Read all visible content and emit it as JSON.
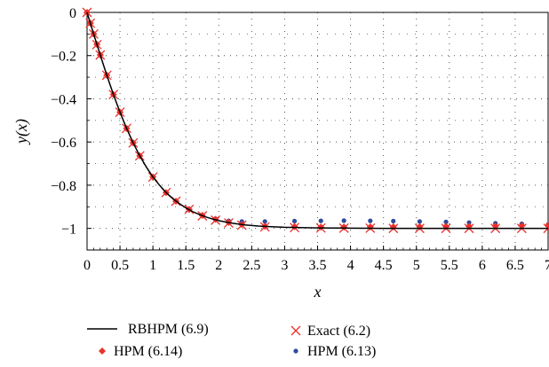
{
  "chart_data": {
    "type": "line",
    "title": "",
    "xlabel": "x",
    "ylabel": "y(x)",
    "xlim": [
      0,
      7
    ],
    "ylim": [
      -1.1,
      0
    ],
    "grid": true,
    "legend_placement": "bottom",
    "xticks": [
      "0",
      "0.5",
      "1",
      "1.5",
      "2",
      "2.5",
      "3",
      "3.5",
      "4",
      "4.5",
      "5",
      "5.5",
      "6",
      "6.5",
      "7"
    ],
    "xtick_values": [
      0,
      0.5,
      1,
      1.5,
      2,
      2.5,
      3,
      3.5,
      4,
      4.5,
      5,
      5.5,
      6,
      6.5,
      7
    ],
    "yticks": [
      "0",
      "−0.2",
      "−0.4",
      "−0.6",
      "−0.8",
      "−1"
    ],
    "ytick_values": [
      0,
      -0.2,
      -0.4,
      -0.6,
      -0.8,
      -1
    ],
    "series": [
      {
        "name": "RBHPM (6.9)",
        "kind": "line",
        "color": "#000000",
        "x": [
          0,
          0.1,
          0.2,
          0.3,
          0.4,
          0.5,
          0.6,
          0.7,
          0.8,
          0.9,
          1.0,
          1.1,
          1.2,
          1.3,
          1.4,
          1.5,
          1.6,
          1.7,
          1.8,
          1.9,
          2.0,
          2.2,
          2.4,
          2.6,
          2.8,
          3.0,
          3.5,
          4.0,
          4.5,
          5.0,
          5.5,
          6.0,
          6.5,
          7.0
        ],
        "y": [
          0,
          -0.1,
          -0.197,
          -0.291,
          -0.38,
          -0.462,
          -0.537,
          -0.604,
          -0.664,
          -0.716,
          -0.762,
          -0.8,
          -0.834,
          -0.862,
          -0.885,
          -0.905,
          -0.922,
          -0.935,
          -0.947,
          -0.956,
          -0.964,
          -0.976,
          -0.984,
          -0.989,
          -0.992,
          -0.995,
          -0.998,
          -0.999,
          -1.0,
          -1.0,
          -1.0,
          -1.0,
          -1.0,
          -1.0
        ]
      },
      {
        "name": "HPM (6.14)",
        "kind": "diamond",
        "color": "#e8322d",
        "x": [
          0,
          0.05,
          0.1,
          0.15,
          0.2,
          0.3,
          0.4,
          0.5,
          0.6,
          0.7,
          0.8,
          1.0,
          1.2,
          1.35,
          1.55,
          1.75,
          1.95,
          2.15,
          2.35,
          2.7,
          3.15,
          3.55,
          3.9,
          4.3,
          4.65,
          5.05,
          5.45,
          5.8,
          6.2,
          6.6,
          7.0
        ],
        "y": [
          0,
          -0.05,
          -0.1,
          -0.148,
          -0.197,
          -0.291,
          -0.38,
          -0.462,
          -0.537,
          -0.604,
          -0.664,
          -0.762,
          -0.834,
          -0.874,
          -0.912,
          -0.94,
          -0.958,
          -0.972,
          -0.982,
          -0.99,
          -0.992,
          -0.994,
          -0.994,
          -0.993,
          -0.993,
          -0.992,
          -0.991,
          -0.99,
          -0.989,
          -0.988,
          -0.987
        ]
      },
      {
        "name": "Exact (6.2)",
        "kind": "cross",
        "color": "#e8322d",
        "x": [
          0,
          0.05,
          0.1,
          0.15,
          0.2,
          0.3,
          0.4,
          0.5,
          0.6,
          0.7,
          0.8,
          1.0,
          1.2,
          1.35,
          1.55,
          1.75,
          1.95,
          2.15,
          2.35,
          2.7,
          3.15,
          3.55,
          3.9,
          4.3,
          4.65,
          5.05,
          5.45,
          5.8,
          6.2,
          6.6,
          7.0
        ],
        "y": [
          0,
          -0.05,
          -0.1,
          -0.149,
          -0.197,
          -0.291,
          -0.38,
          -0.462,
          -0.537,
          -0.604,
          -0.664,
          -0.762,
          -0.834,
          -0.874,
          -0.912,
          -0.942,
          -0.962,
          -0.975,
          -0.985,
          -0.993,
          -0.996,
          -0.998,
          -0.999,
          -0.999,
          -1.0,
          -1.0,
          -1.0,
          -1.0,
          -1.0,
          -1.0,
          -1.0
        ]
      },
      {
        "name": "HPM (6.13)",
        "kind": "dot",
        "color": "#2b4a9c",
        "x": [
          0,
          0.05,
          0.1,
          0.15,
          0.2,
          0.3,
          0.4,
          0.5,
          0.6,
          0.7,
          0.8,
          1.0,
          1.2,
          1.35,
          1.55,
          1.75,
          1.95,
          2.15,
          2.35,
          2.7,
          3.15,
          3.55,
          3.9,
          4.3,
          4.65,
          5.05,
          5.45,
          5.8,
          6.2,
          6.6,
          7.0
        ],
        "y": [
          0,
          -0.05,
          -0.1,
          -0.148,
          -0.197,
          -0.291,
          -0.38,
          -0.462,
          -0.537,
          -0.604,
          -0.664,
          -0.762,
          -0.834,
          -0.874,
          -0.91,
          -0.938,
          -0.955,
          -0.965,
          -0.968,
          -0.968,
          -0.966,
          -0.965,
          -0.964,
          -0.965,
          -0.966,
          -0.968,
          -0.97,
          -0.973,
          -0.976,
          -0.979,
          -0.982
        ]
      }
    ]
  }
}
